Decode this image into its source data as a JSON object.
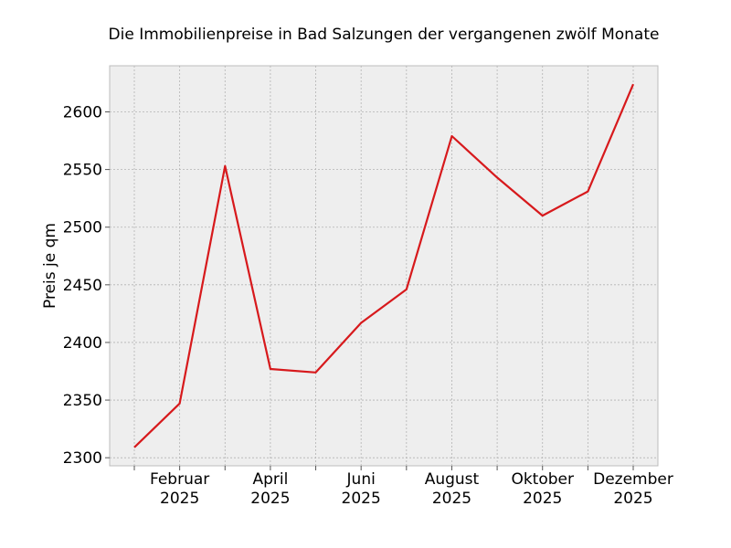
{
  "chart_data": {
    "type": "line",
    "title": "Die Immobilienpreise in Bad Salzungen der vergangenen zwölf Monate",
    "xlabel": "",
    "ylabel": "Preis je qm",
    "x": [
      "2025-01",
      "2025-02",
      "2025-03",
      "2025-04",
      "2025-05",
      "2025-06",
      "2025-07",
      "2025-08",
      "2025-09",
      "2025-10",
      "2025-11",
      "2025-12"
    ],
    "x_tick_labels": [
      {
        "month": "2025-02",
        "line1": "Februar",
        "line2": "2025"
      },
      {
        "month": "2025-04",
        "line1": "April",
        "line2": "2025"
      },
      {
        "month": "2025-06",
        "line1": "Juni",
        "line2": "2025"
      },
      {
        "month": "2025-08",
        "line1": "August",
        "line2": "2025"
      },
      {
        "month": "2025-10",
        "line1": "Oktober",
        "line2": "2025"
      },
      {
        "month": "2025-12",
        "line1": "Dezember",
        "line2": "2025"
      }
    ],
    "series": [
      {
        "values": [
          2309,
          2347,
          2553,
          2377,
          2374,
          2417,
          2446,
          2579,
          2543,
          2510,
          2531,
          2624
        ],
        "color": "#d7191c"
      }
    ],
    "ylim": [
      2293,
      2640
    ],
    "yticks": [
      2300,
      2350,
      2400,
      2450,
      2500,
      2550,
      2600
    ],
    "grid": true,
    "background": "#eeeeee"
  }
}
